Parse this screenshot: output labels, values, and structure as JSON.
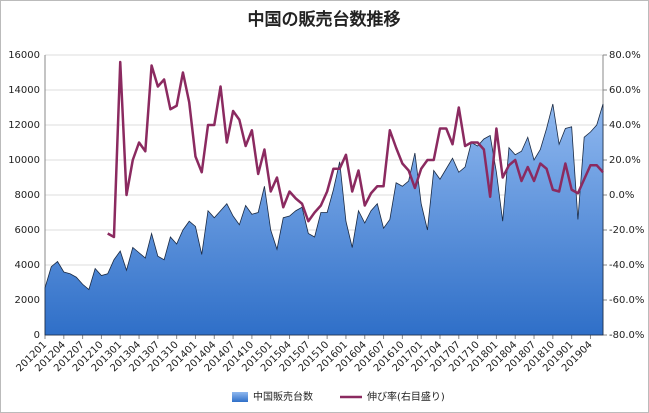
{
  "chart_data": {
    "type": "area_line",
    "title": "中国の販売台数推移",
    "categories": [
      "201201",
      null,
      null,
      "201204",
      null,
      null,
      "201207",
      null,
      null,
      "201210",
      null,
      null,
      "201301",
      null,
      null,
      "201304",
      null,
      null,
      "201307",
      null,
      null,
      "201310",
      null,
      null,
      "201401",
      null,
      null,
      "201404",
      null,
      null,
      "201407",
      null,
      null,
      "201410",
      null,
      null,
      "201501",
      null,
      null,
      "201504",
      null,
      null,
      "201507",
      null,
      null,
      "201510",
      null,
      null,
      "201601",
      null,
      null,
      "201604",
      null,
      null,
      "201607",
      null,
      null,
      "201610",
      null,
      null,
      "201701",
      null,
      null,
      "201704",
      null,
      null,
      "201707",
      null,
      null,
      "201710",
      null,
      null,
      "201801",
      null,
      null,
      "201804",
      null,
      null,
      "201807",
      null,
      null,
      "201810",
      null,
      null,
      "201901",
      null,
      null,
      "201904",
      null,
      null
    ],
    "series": [
      {
        "name": "中国販売台数",
        "color": "#4a86d8",
        "values": [
          2700,
          3900,
          4200,
          3600,
          3500,
          3300,
          2900,
          2600,
          3800,
          3400,
          3500,
          4300,
          4800,
          3700,
          5000,
          4700,
          4400,
          5800,
          4500,
          4300,
          5600,
          5200,
          6000,
          6500,
          6200,
          4600,
          7100,
          6700,
          7100,
          7500,
          6800,
          6300,
          7400,
          6900,
          7000,
          8500,
          6000,
          4900,
          6700,
          6800,
          7100,
          7300,
          5800,
          5600,
          7000,
          7000,
          8300,
          9900,
          6500,
          5000,
          7100,
          6400,
          7100,
          7500,
          6100,
          6600,
          8700,
          8500,
          8800,
          10400,
          7500,
          6000,
          9400,
          8900,
          9500,
          10100,
          9300,
          9600,
          11000,
          10800,
          11200,
          11400,
          9300,
          6500,
          10700,
          10300,
          10500,
          11300,
          10000,
          10600,
          11800,
          13200,
          10900,
          11800,
          11900,
          6600,
          11300,
          11600,
          12000,
          13200
        ]
      },
      {
        "name": "伸び率(右目盛り)",
        "color": "#8b2a60",
        "axis": "y2",
        "values": [
          null,
          null,
          null,
          null,
          null,
          null,
          null,
          null,
          null,
          null,
          -22,
          -24,
          76,
          0,
          20,
          30,
          25,
          74,
          62,
          66,
          49,
          51,
          70,
          53,
          22,
          13,
          40,
          40,
          62,
          30,
          48,
          43,
          28,
          37,
          12,
          26,
          2,
          10,
          -7,
          2,
          -2,
          -5,
          -15,
          -10,
          -6,
          2,
          15,
          15,
          23,
          2,
          14,
          -6,
          1,
          5,
          5,
          37,
          27,
          18,
          14,
          4,
          15,
          20,
          20,
          38,
          38,
          29,
          50,
          28,
          30,
          30,
          26,
          -1,
          38,
          10,
          17,
          20,
          8,
          16,
          8,
          18,
          15,
          3,
          2,
          18,
          3,
          1,
          9,
          17,
          17,
          13
        ]
      }
    ],
    "ylim": [
      0,
      16000
    ],
    "yticks": [
      0,
      2000,
      4000,
      6000,
      8000,
      10000,
      12000,
      14000,
      16000
    ],
    "y2lim": [
      -80,
      80
    ],
    "y2ticks": [
      {
        "value": -80,
        "label": "-80.0%"
      },
      {
        "value": -60,
        "label": "-60.0%"
      },
      {
        "value": -40,
        "label": "-40.0%"
      },
      {
        "value": -20,
        "label": "-20.0%"
      },
      {
        "value": 0,
        "label": "0.0%"
      },
      {
        "value": 20,
        "label": "20.0%"
      },
      {
        "value": 40,
        "label": "40.0%"
      },
      {
        "value": 60,
        "label": "60.0%"
      },
      {
        "value": 80,
        "label": "80.0%"
      }
    ],
    "legend": "bottom"
  }
}
